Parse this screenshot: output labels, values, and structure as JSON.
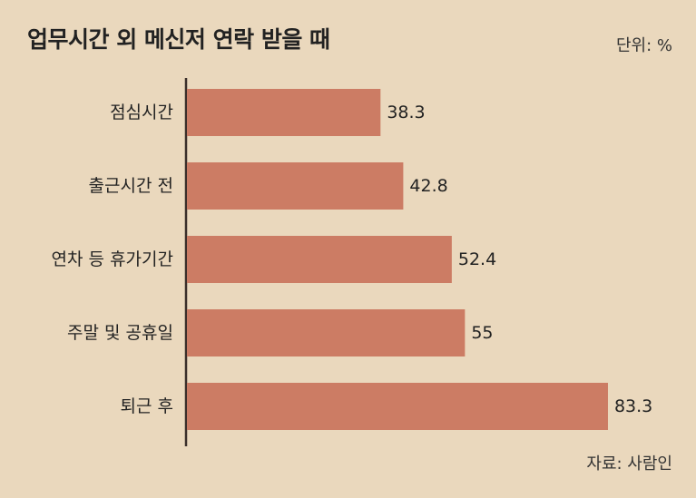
{
  "title": "업무시간 외 메신저 연락 받을 때",
  "unit_label": "단위: %",
  "source_label": "자료: 사람인",
  "colors": {
    "background": "#ead8bd",
    "bar": "#cc7c64",
    "axis": "#3a2e2a"
  },
  "chart_data": {
    "type": "bar",
    "orientation": "horizontal",
    "title": "업무시간 외 메신저 연락 받을 때",
    "categories": [
      "점심시간",
      "출근시간 전",
      "연차 등 휴가기간",
      "주말 및 공휴일",
      "퇴근 후"
    ],
    "values": [
      38.3,
      42.8,
      52.4,
      55,
      83.3
    ],
    "value_labels": [
      "38.3",
      "42.8",
      "52.4",
      "55",
      "83.3"
    ],
    "unit": "%",
    "xlim": [
      0,
      100
    ],
    "grid": false,
    "legend": "none"
  }
}
